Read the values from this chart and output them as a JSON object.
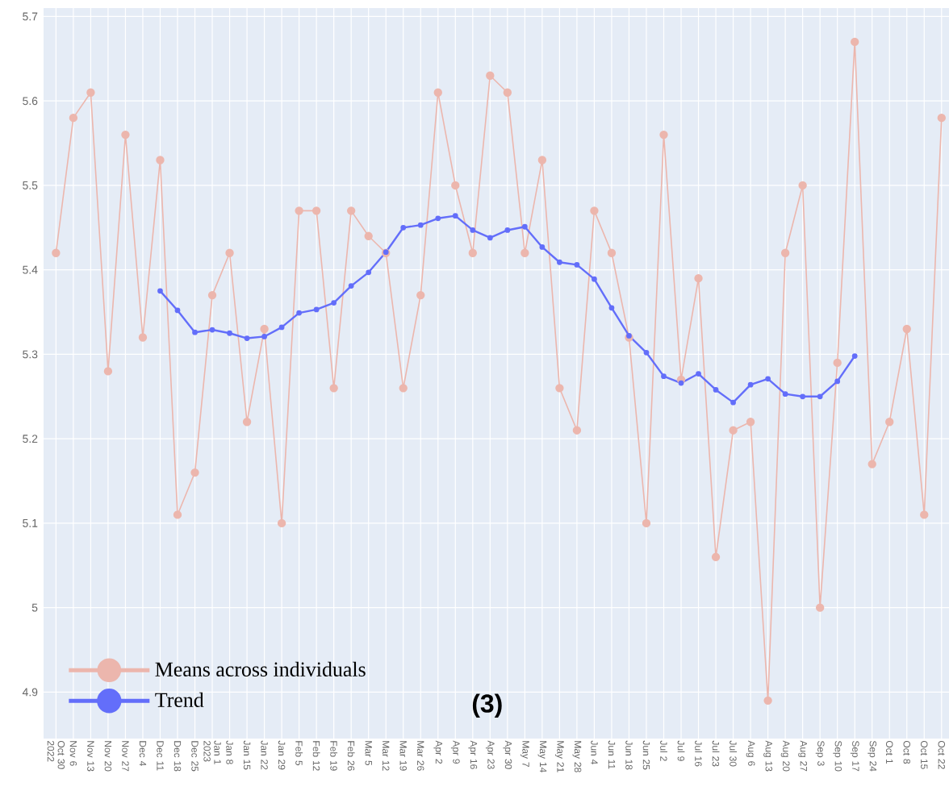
{
  "chart_data": {
    "type": "line",
    "x": [
      "2022-10-30",
      "2022-11-06",
      "2022-11-13",
      "2022-11-20",
      "2022-11-27",
      "2022-12-04",
      "2022-12-11",
      "2022-12-18",
      "2022-12-25",
      "2023-01-01",
      "2023-01-08",
      "2023-01-15",
      "2023-01-22",
      "2023-01-29",
      "2023-02-05",
      "2023-02-12",
      "2023-02-19",
      "2023-02-26",
      "2023-03-05",
      "2023-03-12",
      "2023-03-19",
      "2023-03-26",
      "2023-04-02",
      "2023-04-09",
      "2023-04-16",
      "2023-04-23",
      "2023-04-30",
      "2023-05-07",
      "2023-05-14",
      "2023-05-21",
      "2023-05-28",
      "2023-06-04",
      "2023-06-11",
      "2023-06-18",
      "2023-06-25",
      "2023-07-02",
      "2023-07-09",
      "2023-07-16",
      "2023-07-23",
      "2023-07-30",
      "2023-08-06",
      "2023-08-13",
      "2023-08-20",
      "2023-08-27",
      "2023-09-03",
      "2023-09-10",
      "2023-09-17",
      "2023-09-24",
      "2023-10-01",
      "2023-10-08",
      "2023-10-15",
      "2023-10-22"
    ],
    "series": [
      {
        "name": "Means across individuals",
        "color": "#ecb6ad",
        "values": [
          5.42,
          5.58,
          5.61,
          5.28,
          5.56,
          5.32,
          5.53,
          5.11,
          5.16,
          5.37,
          5.42,
          5.22,
          5.33,
          5.1,
          5.47,
          5.47,
          5.26,
          5.47,
          5.44,
          5.42,
          5.26,
          5.37,
          5.61,
          5.5,
          5.42,
          5.63,
          5.61,
          5.42,
          5.53,
          5.26,
          5.21,
          5.47,
          5.42,
          5.32,
          5.1,
          5.56,
          5.27,
          5.39,
          5.06,
          5.21,
          5.22,
          4.89,
          5.42,
          5.5,
          5.0,
          5.29,
          5.67,
          5.17,
          5.22,
          5.33,
          5.11,
          5.58
        ]
      },
      {
        "name": "Trend",
        "color": "#636efa",
        "values": [
          null,
          null,
          null,
          null,
          null,
          null,
          5.375,
          5.352,
          5.326,
          5.329,
          5.325,
          5.319,
          5.321,
          5.332,
          5.349,
          5.353,
          5.361,
          5.381,
          5.397,
          5.421,
          5.45,
          5.453,
          5.461,
          5.464,
          5.447,
          5.438,
          5.447,
          5.451,
          5.427,
          5.409,
          5.406,
          5.389,
          5.355,
          5.322,
          5.302,
          5.274,
          5.266,
          5.277,
          5.258,
          5.243,
          5.264,
          5.271,
          5.253,
          5.25,
          5.25,
          5.268,
          5.298,
          null,
          null,
          null,
          null,
          null
        ]
      }
    ],
    "xlim": [
      "2022-10-25",
      "2023-10-25"
    ],
    "xticks": [
      {
        "value": "2022-10-30",
        "label": "Oct 30 2022"
      },
      {
        "value": "2022-11-06",
        "label": "Nov 6"
      },
      {
        "value": "2022-11-13",
        "label": "Nov 13"
      },
      {
        "value": "2022-11-20",
        "label": "Nov 20"
      },
      {
        "value": "2022-11-27",
        "label": "Nov 27"
      },
      {
        "value": "2022-12-04",
        "label": "Dec 4"
      },
      {
        "value": "2022-12-11",
        "label": "Dec 11"
      },
      {
        "value": "2022-12-18",
        "label": "Dec 18"
      },
      {
        "value": "2022-12-25",
        "label": "Dec 25"
      },
      {
        "value": "2023-01-01",
        "label": "Jan 1 2023"
      },
      {
        "value": "2023-01-08",
        "label": "Jan 8"
      },
      {
        "value": "2023-01-15",
        "label": "Jan 15"
      },
      {
        "value": "2023-01-22",
        "label": "Jan 22"
      },
      {
        "value": "2023-01-29",
        "label": "Jan 29"
      },
      {
        "value": "2023-02-05",
        "label": "Feb 5"
      },
      {
        "value": "2023-02-12",
        "label": "Feb 12"
      },
      {
        "value": "2023-02-19",
        "label": "Feb 19"
      },
      {
        "value": "2023-02-26",
        "label": "Feb 26"
      },
      {
        "value": "2023-03-05",
        "label": "Mar 5"
      },
      {
        "value": "2023-03-12",
        "label": "Mar 12"
      },
      {
        "value": "2023-03-19",
        "label": "Mar 19"
      },
      {
        "value": "2023-03-26",
        "label": "Mar 26"
      },
      {
        "value": "2023-04-02",
        "label": "Apr 2"
      },
      {
        "value": "2023-04-09",
        "label": "Apr 9"
      },
      {
        "value": "2023-04-16",
        "label": "Apr 16"
      },
      {
        "value": "2023-04-23",
        "label": "Apr 23"
      },
      {
        "value": "2023-04-30",
        "label": "Apr 30"
      },
      {
        "value": "2023-05-07",
        "label": "May 7"
      },
      {
        "value": "2023-05-14",
        "label": "May 14"
      },
      {
        "value": "2023-05-21",
        "label": "May 21"
      },
      {
        "value": "2023-05-28",
        "label": "May 28"
      },
      {
        "value": "2023-06-04",
        "label": "Jun 4"
      },
      {
        "value": "2023-06-11",
        "label": "Jun 11"
      },
      {
        "value": "2023-06-18",
        "label": "Jun 18"
      },
      {
        "value": "2023-06-25",
        "label": "Jun 25"
      },
      {
        "value": "2023-07-02",
        "label": "Jul 2"
      },
      {
        "value": "2023-07-09",
        "label": "Jul 9"
      },
      {
        "value": "2023-07-16",
        "label": "Jul 16"
      },
      {
        "value": "2023-07-23",
        "label": "Jul 23"
      },
      {
        "value": "2023-07-30",
        "label": "Jul 30"
      },
      {
        "value": "2023-08-06",
        "label": "Aug 6"
      },
      {
        "value": "2023-08-13",
        "label": "Aug 13"
      },
      {
        "value": "2023-08-20",
        "label": "Aug 20"
      },
      {
        "value": "2023-08-27",
        "label": "Aug 27"
      },
      {
        "value": "2023-09-03",
        "label": "Sep 3"
      },
      {
        "value": "2023-09-10",
        "label": "Sep 10"
      },
      {
        "value": "2023-09-17",
        "label": "Sep 17"
      },
      {
        "value": "2023-09-24",
        "label": "Sep 24"
      },
      {
        "value": "2023-10-01",
        "label": "Oct 1"
      },
      {
        "value": "2023-10-08",
        "label": "Oct 8"
      },
      {
        "value": "2023-10-15",
        "label": "Oct 15"
      },
      {
        "value": "2023-10-22",
        "label": "Oct 22"
      }
    ],
    "ylim": [
      4.845,
      5.71
    ],
    "yticks": [
      4.9,
      5,
      5.1,
      5.2,
      5.3,
      5.4,
      5.5,
      5.6,
      5.7
    ],
    "grid": true,
    "legend": "bottom left",
    "marker": "circle",
    "line_style": "solid",
    "annotations": [
      "(3)"
    ]
  }
}
